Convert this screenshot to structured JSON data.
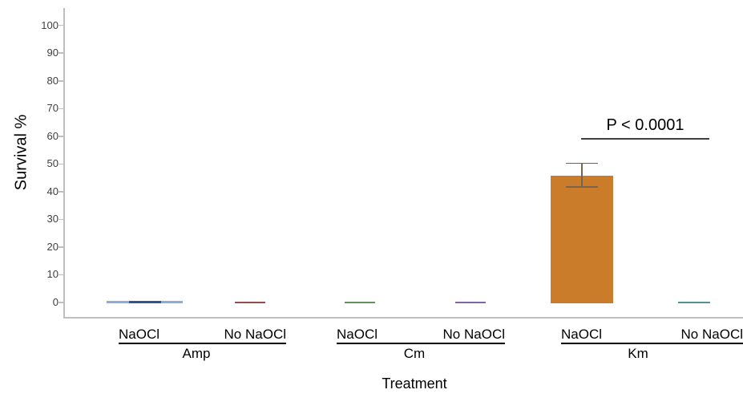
{
  "figure": {
    "background": "#ffffff",
    "axis_color": "#bfbfbf",
    "tick_label_color": "#3f3f3f",
    "text_color": "#000000"
  },
  "chart_data": {
    "type": "bar",
    "title": "",
    "xlabel": "Treatment",
    "ylabel": "Survival %",
    "ylim": [
      0,
      100
    ],
    "yticks": [
      0,
      10,
      20,
      30,
      40,
      50,
      60,
      70,
      80,
      90,
      100
    ],
    "grid": false,
    "legend": false,
    "categories": [
      "Amp",
      "Cm",
      "Km"
    ],
    "conditions": [
      "NaOCl",
      "No NaOCl"
    ],
    "groups": [
      {
        "label": "Amp",
        "bars": [
          {
            "condition": "NaOCl",
            "value": 0.8,
            "color": "#8faadc",
            "cap_color": "#2f5597"
          },
          {
            "condition": "No NaOCl",
            "value": 0.5,
            "color": "#964b4b"
          }
        ]
      },
      {
        "label": "Cm",
        "bars": [
          {
            "condition": "NaOCl",
            "value": 0.5,
            "color": "#66905f"
          },
          {
            "condition": "No NaOCl",
            "value": 0.5,
            "color": "#8464a8"
          }
        ]
      },
      {
        "label": "Km",
        "bars": [
          {
            "condition": "NaOCl",
            "value": 46,
            "color": "#cb7c2b",
            "error": {
              "plus": 4.3,
              "minus": 4.3,
              "color": "#77644c"
            }
          },
          {
            "condition": "No NaOCl",
            "value": 0.5,
            "color": "#4f9393"
          }
        ]
      }
    ],
    "annotation": {
      "text": "P < 0.0001",
      "group": "Km",
      "line_color": "#404040"
    }
  }
}
